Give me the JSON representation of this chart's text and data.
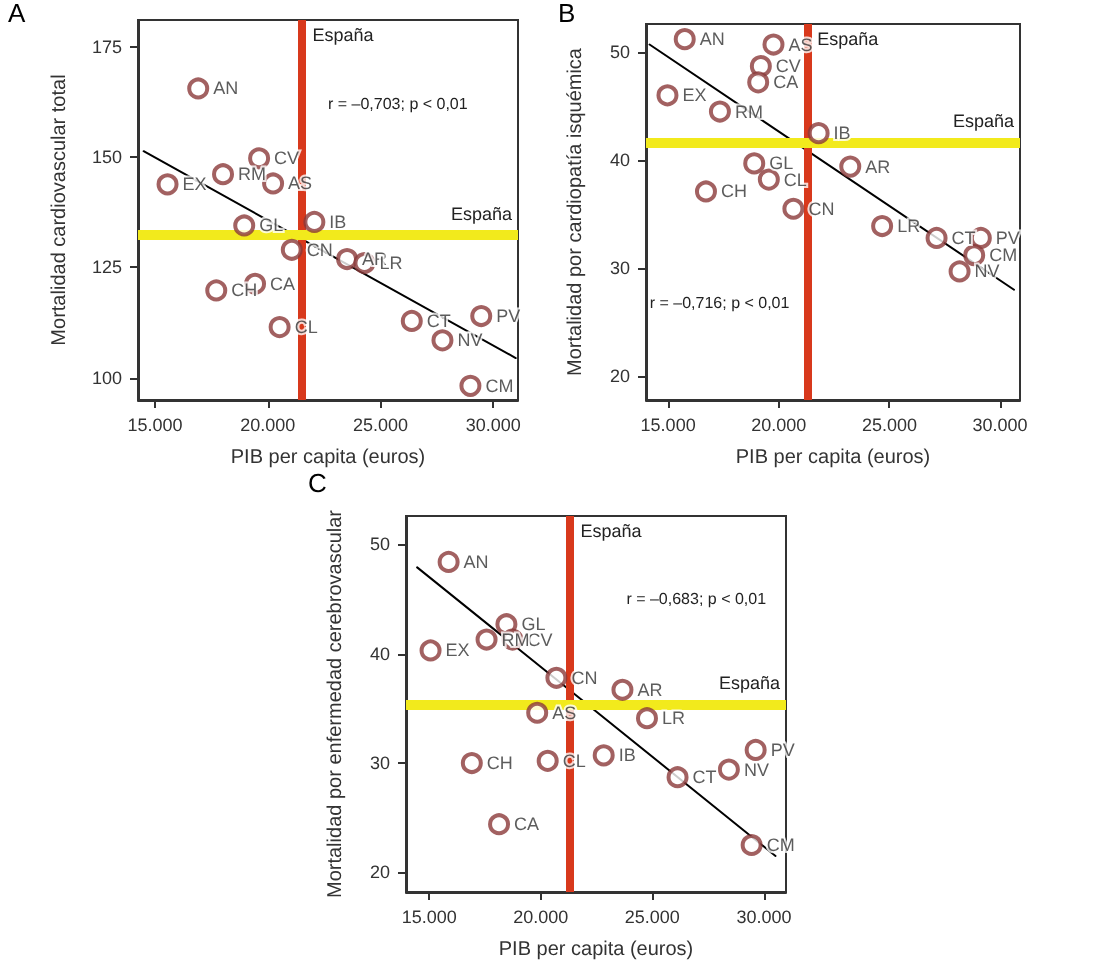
{
  "chart_data": [
    {
      "type": "scatter",
      "title": "A",
      "xlabel": "PIB per capita (euros)",
      "ylabel": "Mortalidad cardiovascular total",
      "annotations": [
        "r = –0,703; p < 0,01"
      ],
      "xlim": [
        14250,
        31100
      ],
      "ylim": [
        95,
        181
      ],
      "xticks": [
        {
          "value": 15000,
          "label": "15.000"
        },
        {
          "value": 20000,
          "label": "20.000"
        },
        {
          "value": 25000,
          "label": "25.000"
        },
        {
          "value": 30000,
          "label": "30.000"
        }
      ],
      "yticks": [
        100,
        125,
        150,
        175
      ],
      "ref_lines": [
        {
          "axis": "x",
          "value": 21540,
          "label": "España",
          "color": "#d8391c"
        },
        {
          "axis": "y",
          "value": 132.3,
          "label": "España",
          "color": "#f2ea1c"
        }
      ],
      "series": [
        {
          "type": "scatter",
          "color": "#8b3a3a",
          "marker": "circle",
          "x": [
            16920,
            19620,
            18020,
            15560,
            20240,
            18960,
            22070,
            21070,
            23520,
            24290,
            19440,
            17720,
            20530,
            26390,
            29470,
            27750,
            28990
          ],
          "values": [
            165.5,
            149.7,
            146.1,
            143.8,
            144.0,
            134.5,
            135.3,
            129.0,
            126.9,
            126.0,
            121.3,
            119.8,
            111.5,
            112.9,
            114.0,
            108.5,
            98.2
          ],
          "value_labels": [
            "AN",
            "CV",
            "RM",
            "EX",
            "AS",
            "GL",
            "IB",
            "CN",
            "AR",
            "LR",
            "CA",
            "CH",
            "CL",
            "CT",
            "PV",
            "NV",
            "CM"
          ]
        },
        {
          "type": "line",
          "color": "#000000",
          "marker": "none",
          "x": [
            14500,
            31000
          ],
          "values": [
            151.3,
            104.5
          ]
        }
      ]
    },
    {
      "type": "scatter",
      "title": "B",
      "xlabel": "PIB per capita (euros)",
      "ylabel": "Mortalidad por cardiopatía isquémica",
      "annotations": [
        "r = –0,716; p < 0,01"
      ],
      "xlim": [
        14000,
        30900
      ],
      "ylim": [
        17.8,
        52.6
      ],
      "xticks": [
        {
          "value": 15000,
          "label": "15.000"
        },
        {
          "value": 20000,
          "label": "20.000"
        },
        {
          "value": 25000,
          "label": "25.000"
        },
        {
          "value": 30000,
          "label": "30.000"
        }
      ],
      "yticks": [
        20,
        30,
        40,
        50
      ],
      "ref_lines": [
        {
          "axis": "x",
          "value": 21290,
          "label": "España",
          "color": "#d8391c"
        },
        {
          "axis": "y",
          "value": 41.7,
          "label": "España",
          "color": "#f2ea1c"
        }
      ],
      "series": [
        {
          "type": "scatter",
          "color": "#8b3a3a",
          "marker": "circle",
          "x": [
            15750,
            19760,
            19190,
            19070,
            14970,
            17340,
            21800,
            23230,
            18890,
            19550,
            16710,
            20660,
            24670,
            27130,
            29130,
            28830,
            28170
          ],
          "values": [
            51.2,
            50.7,
            48.7,
            47.2,
            46.0,
            44.5,
            42.5,
            39.4,
            39.7,
            38.2,
            37.1,
            35.5,
            33.9,
            32.8,
            32.8,
            31.2,
            29.7
          ],
          "value_labels": [
            "AN",
            "AS",
            "CV",
            "CA",
            "EX",
            "RM",
            "IB",
            "AR",
            "GL",
            "CL",
            "CH",
            "CN",
            "LR",
            "CT",
            "PV",
            "CM",
            "NV"
          ]
        },
        {
          "type": "line",
          "color": "#000000",
          "marker": "none",
          "x": [
            14160,
            30630
          ],
          "values": [
            50.7,
            28.0
          ]
        }
      ]
    },
    {
      "type": "scatter",
      "title": "C",
      "xlabel": "PIB per capita (euros)",
      "ylabel": "Mortalidad por enfermedad cerebrovascular",
      "annotations": [
        "r = –0,683; p < 0,01"
      ],
      "xlim": [
        13960,
        30990
      ],
      "ylim": [
        18.2,
        52.6
      ],
      "xticks": [
        {
          "value": 15000,
          "label": "15.000"
        },
        {
          "value": 20000,
          "label": "20.000"
        },
        {
          "value": 25000,
          "label": "25.000"
        },
        {
          "value": 30000,
          "label": "30.000"
        }
      ],
      "yticks": [
        20,
        30,
        40,
        50
      ],
      "ref_lines": [
        {
          "axis": "x",
          "value": 21330,
          "label": "España",
          "color": "#d8391c"
        },
        {
          "axis": "y",
          "value": 35.4,
          "label": "España",
          "color": "#f2ea1c"
        }
      ],
      "series": [
        {
          "type": "scatter",
          "color": "#8b3a3a",
          "marker": "circle",
          "x": [
            15870,
            18460,
            18730,
            17570,
            15060,
            20700,
            23660,
            19840,
            24760,
            29630,
            22820,
            16910,
            20310,
            28430,
            26130,
            18130,
            29450
          ],
          "values": [
            48.4,
            42.7,
            41.3,
            41.3,
            40.3,
            37.8,
            36.7,
            34.6,
            34.1,
            31.2,
            30.7,
            30.0,
            30.2,
            29.4,
            28.7,
            24.4,
            22.5
          ],
          "value_labels": [
            "AN",
            "GL",
            "CV",
            "RM",
            "EX",
            "CN",
            "AR",
            "AS",
            "LR",
            "PV",
            "IB",
            "CH",
            "CL",
            "NV",
            "CT",
            "CA",
            "CM"
          ]
        },
        {
          "type": "line",
          "color": "#000000",
          "marker": "none",
          "x": [
            14460,
            30520
          ],
          "values": [
            47.9,
            21.5
          ]
        }
      ]
    }
  ]
}
